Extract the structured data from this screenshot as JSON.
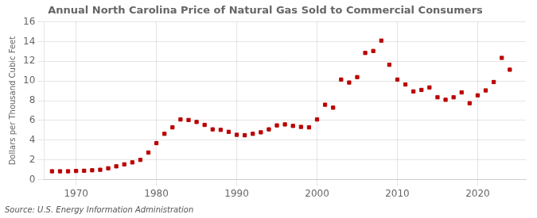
{
  "chart_data": {
    "type": "scatter",
    "title": "Annual North Carolina Price of Natural Gas Sold to Commercial Consumers",
    "ylabel": "Dollars per Thousand Cubic Feet",
    "annotations": [
      "Source: U.S. Energy Information Administration"
    ],
    "x": [
      1967,
      1968,
      1969,
      1970,
      1971,
      1972,
      1973,
      1974,
      1975,
      1976,
      1977,
      1978,
      1979,
      1980,
      1981,
      1982,
      1983,
      1984,
      1985,
      1986,
      1987,
      1988,
      1989,
      1990,
      1991,
      1992,
      1993,
      1994,
      1995,
      1996,
      1997,
      1998,
      1999,
      2000,
      2001,
      2002,
      2003,
      2004,
      2005,
      2006,
      2007,
      2008,
      2009,
      2010,
      2011,
      2012,
      2013,
      2014,
      2015,
      2016,
      2017,
      2018,
      2019,
      2020,
      2021,
      2022,
      2023,
      2024
    ],
    "values": [
      0.85,
      0.85,
      0.85,
      0.88,
      0.9,
      0.95,
      1.0,
      1.15,
      1.35,
      1.55,
      1.75,
      2.0,
      2.75,
      3.7,
      4.65,
      5.3,
      6.1,
      6.05,
      5.85,
      5.55,
      5.1,
      5.05,
      4.85,
      4.55,
      4.5,
      4.65,
      4.8,
      5.1,
      5.5,
      5.6,
      5.45,
      5.35,
      5.3,
      6.1,
      7.6,
      7.3,
      10.15,
      9.85,
      10.4,
      12.85,
      13.05,
      14.1,
      11.65,
      10.15,
      9.65,
      8.95,
      9.1,
      9.35,
      8.35,
      8.1,
      8.35,
      8.85,
      7.75,
      8.55,
      9.05,
      9.9,
      12.35,
      11.15
    ],
    "color": "#bb0000",
    "marker": "square",
    "xlim": [
      1966,
      2026
    ],
    "xticks": [
      1970,
      1980,
      1990,
      2000,
      2010,
      2020
    ],
    "ylim": [
      0,
      16
    ],
    "yticks": [
      0,
      2,
      4,
      6,
      8,
      10,
      12,
      14,
      16
    ],
    "grid": true
  }
}
